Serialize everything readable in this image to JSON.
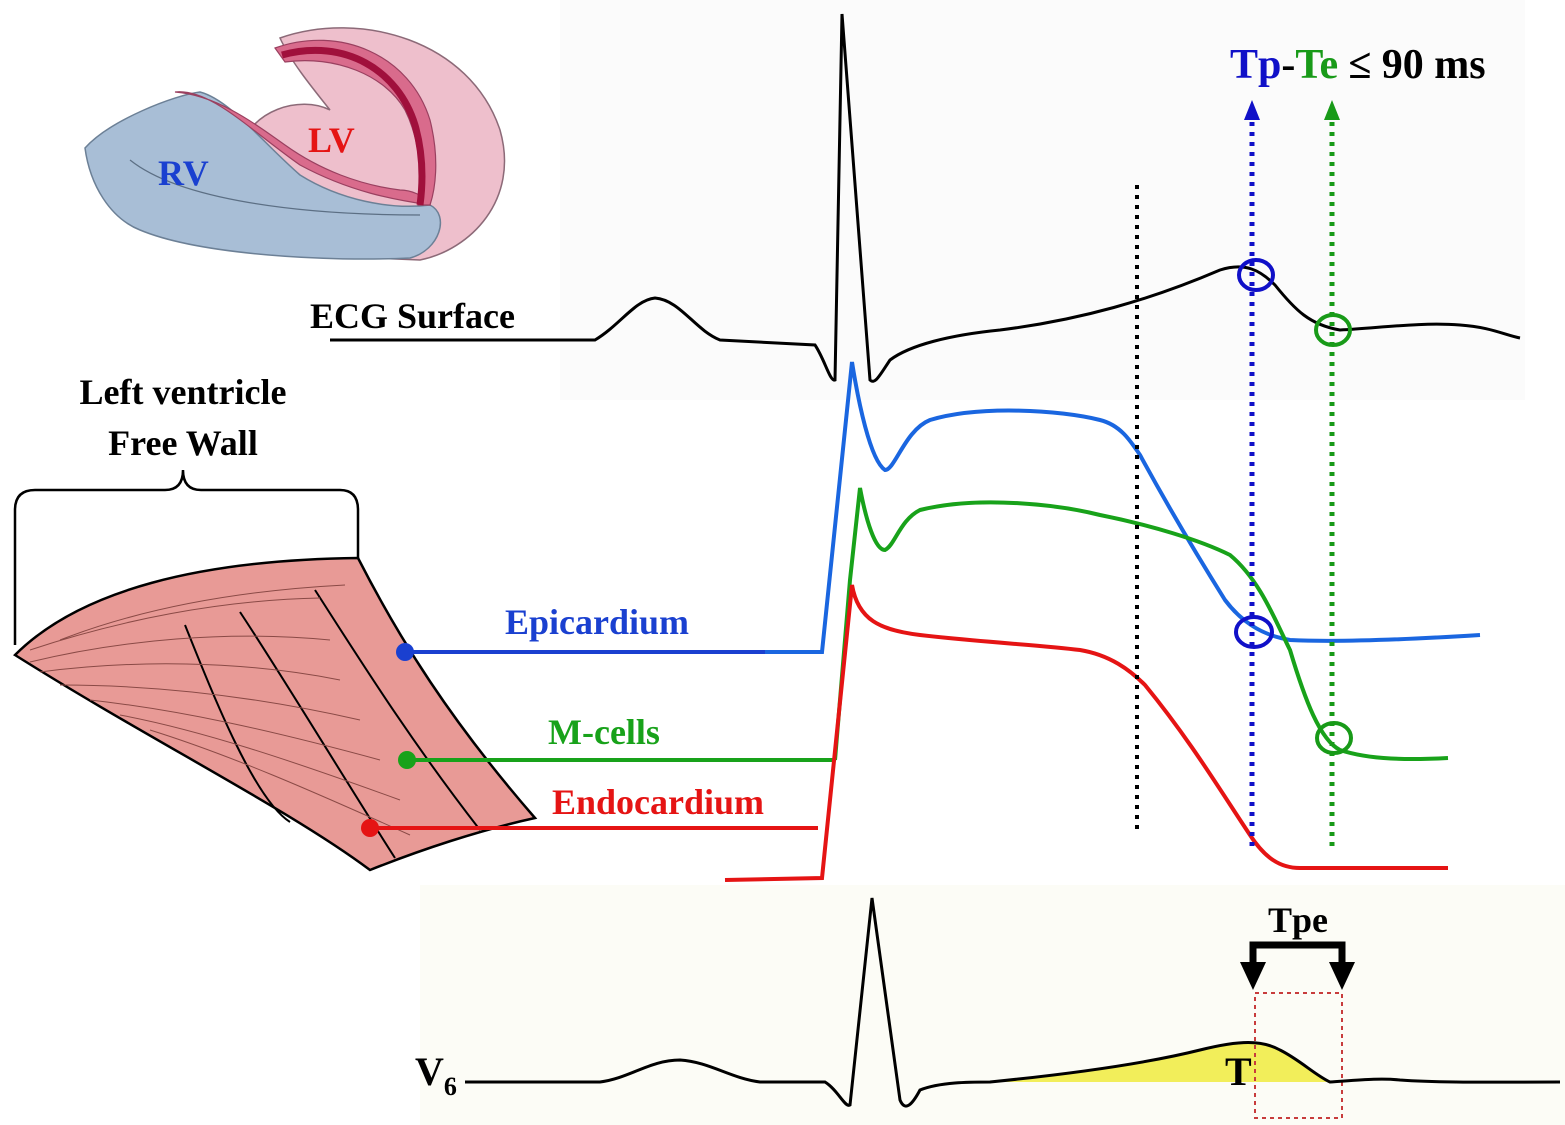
{
  "labels": {
    "lv": "LV",
    "rv": "RV",
    "ecg_surface": "ECG Surface",
    "left_ventricle_line1": "Left ventricle",
    "left_ventricle_line2": "Free Wall",
    "epicardium": "Epicardium",
    "m_cells": "M-cells",
    "endocardium": "Endocardium",
    "tp": "Tp",
    "dash": "-",
    "te": "Te",
    "tpte_value": "≤ 90 ms",
    "tpe": "Tpe",
    "t_wave": "T",
    "v6_letter": "V",
    "v6_sub": "6"
  },
  "colors": {
    "epicardium": "#1a66e0",
    "m_cells": "#18a21a",
    "endocardium": "#e51414",
    "tp_marker": "#1010c8",
    "te_marker": "#189a18",
    "ecg": "#000000",
    "tissue": "#e89a96",
    "t_fill": "#f2ee5a",
    "rv_fill": "#a8bed6",
    "lv_fill": "#eebfcc"
  }
}
